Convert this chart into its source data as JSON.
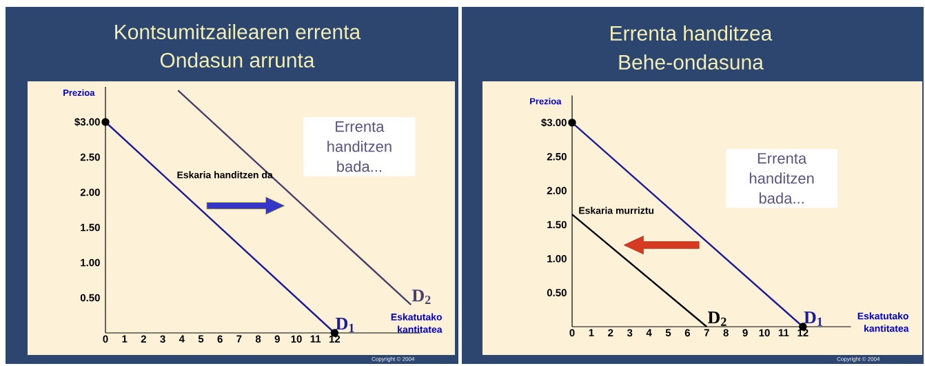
{
  "chart_data": [
    {
      "type": "line",
      "title": "Kontsumitzailearen errenta",
      "subtitle": "Ondasun arrunta",
      "xlabel": "Eskatutako kantitatea",
      "ylabel": "Prezioa",
      "xlim": [
        0,
        16.5
      ],
      "ylim": [
        0,
        3.5
      ],
      "xticks": [
        0,
        1,
        2,
        3,
        4,
        5,
        6,
        7,
        8,
        9,
        10,
        11,
        12
      ],
      "yticks": [
        {
          "value": 0.5,
          "label": "0.50"
        },
        {
          "value": 1,
          "label": "1.00"
        },
        {
          "value": 1.5,
          "label": "1.50"
        },
        {
          "value": 2,
          "label": "2.00"
        },
        {
          "value": 2.5,
          "label": "2.50"
        },
        {
          "value": 3,
          "label": "$3.00"
        }
      ],
      "series": [
        {
          "name": "D$_{1}$",
          "color": "#1c1c96",
          "marker": "circle",
          "x": [
            0,
            12
          ],
          "values": [
            3,
            0
          ]
        },
        {
          "name": "D$_{2}$",
          "color": "#4a3f6b",
          "x": [
            3.8,
            16
          ],
          "values": [
            3.45,
            0.4
          ]
        }
      ],
      "annotations": [
        "Errenta handitzen bada...",
        "Eskaria handitzen da",
        "Copyright © 2004"
      ]
    },
    {
      "type": "line",
      "title": "Errenta handitzea",
      "subtitle": "Behe-ondasuna",
      "xlabel": "Eskatutako kantitatea",
      "ylabel": "Prezioa",
      "xlim": [
        0,
        14.5
      ],
      "ylim": [
        0,
        3.4
      ],
      "xticks": [
        0,
        1,
        2,
        3,
        4,
        5,
        6,
        7,
        8,
        9,
        10,
        11,
        12
      ],
      "yticks": [
        {
          "value": 0.5,
          "label": "0.50"
        },
        {
          "value": 1,
          "label": "1.00"
        },
        {
          "value": 1.5,
          "label": "1.50"
        },
        {
          "value": 2,
          "label": "2.00"
        },
        {
          "value": 2.5,
          "label": "2.50"
        },
        {
          "value": 3,
          "label": "$3.00"
        }
      ],
      "series": [
        {
          "name": "D$_{1}$",
          "color": "#1c1c96",
          "marker": "circle",
          "x": [
            0,
            12
          ],
          "values": [
            3,
            0
          ]
        },
        {
          "name": "D$_{2}$",
          "color": "#000000",
          "x": [
            0,
            7
          ],
          "values": [
            1.65,
            0
          ]
        }
      ],
      "annotations": [
        "Errenta handitzen bada...",
        "Eskaria murriztu",
        "Copyright © 2004"
      ]
    }
  ]
}
